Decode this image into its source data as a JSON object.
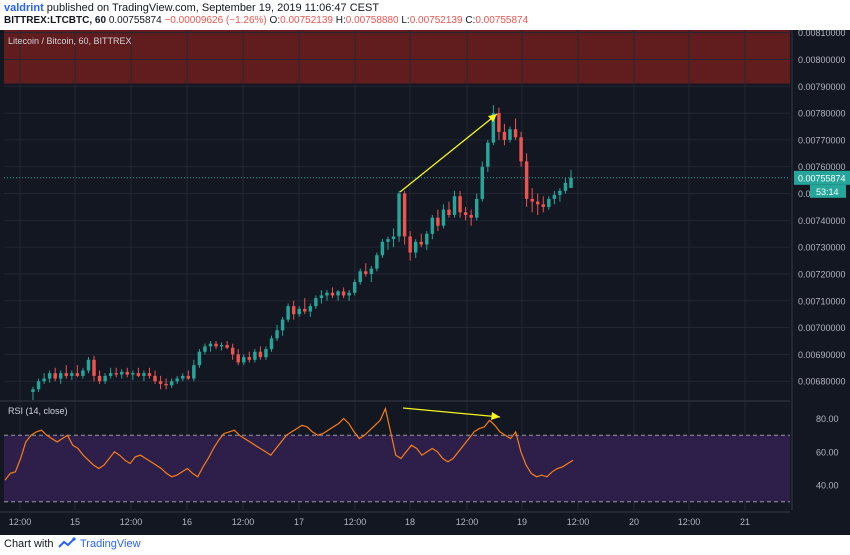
{
  "header": {
    "user": "valdrint",
    "published": " published on TradingView.com, September 19, 2019 11:06:47 CEST",
    "symbol": "BITTREX:LTCBTC, 60",
    "last_price": "0.00755874",
    "change": "−0.00009626 (−1.26%)",
    "ohlc": {
      "o_label": "O:",
      "o": "0.00752139",
      "h_label": "H:",
      "h": "0.00758880",
      "l_label": "L:",
      "l": "0.00752139",
      "c_label": "C:",
      "c": "0.00755874"
    }
  },
  "footer": {
    "chart_with": "Chart with",
    "brand": "TradingView"
  },
  "colors": {
    "background": "#131722",
    "up": "#26a69a",
    "down": "#ef5350",
    "rsi": "#f57f17",
    "annotation": "#f5f520",
    "zone": "#701d1d",
    "rsi_band": "#2d1f4a",
    "grid": "#232733"
  },
  "chart_data": [
    {
      "type": "candlestick",
      "title": "Litecoin / Bitcoin, 60, BITTREX",
      "ylim": [
        0.00673,
        0.00811
      ],
      "y_ticks": [
        "0.00810000",
        "0.00800000",
        "0.00790000",
        "0.00780000",
        "0.00770000",
        "0.00760000",
        "0.00750000",
        "0.00740000",
        "0.00730000",
        "0.00720000",
        "0.00710000",
        "0.00700000",
        "0.00690000",
        "0.00680000"
      ],
      "x_ticks": [
        "12:00",
        "15",
        "12:00",
        "16",
        "12:00",
        "17",
        "12:00",
        "18",
        "12:00",
        "19",
        "12:00",
        "20",
        "12:00",
        "21"
      ],
      "last_price_label": "0.00755874",
      "countdown_label": "53:14",
      "resistance_zone": [
        0.00791,
        0.00811
      ],
      "candles": [
        [
          0.00676,
          0.00678,
          0.00673,
          0.00677
        ],
        [
          0.00677,
          0.00681,
          0.00676,
          0.0068
        ],
        [
          0.0068,
          0.00683,
          0.00679,
          0.00681
        ],
        [
          0.00681,
          0.00684,
          0.006795,
          0.00683
        ],
        [
          0.00683,
          0.00685,
          0.0068,
          0.00681
        ],
        [
          0.00681,
          0.00684,
          0.00679,
          0.00683
        ],
        [
          0.00683,
          0.00686,
          0.00681,
          0.00682
        ],
        [
          0.00682,
          0.00684,
          0.006805,
          0.00683
        ],
        [
          0.00683,
          0.00686,
          0.006815,
          0.00682
        ],
        [
          0.00682,
          0.00685,
          0.00681,
          0.00684
        ],
        [
          0.00684,
          0.00689,
          0.00683,
          0.00688
        ],
        [
          0.00688,
          0.006895,
          0.0068,
          0.00682
        ],
        [
          0.00682,
          0.00684,
          0.00679,
          0.0068
        ],
        [
          0.0068,
          0.00683,
          0.00679,
          0.00682
        ],
        [
          0.00682,
          0.00685,
          0.00681,
          0.00683
        ],
        [
          0.00683,
          0.00685,
          0.006815,
          0.006825
        ],
        [
          0.006825,
          0.006845,
          0.00681,
          0.006835
        ],
        [
          0.006835,
          0.00685,
          0.006815,
          0.006825
        ],
        [
          0.006825,
          0.00684,
          0.006805,
          0.00683
        ],
        [
          0.00683,
          0.00685,
          0.006815,
          0.00682
        ],
        [
          0.00682,
          0.00684,
          0.0068,
          0.00683
        ],
        [
          0.00683,
          0.00685,
          0.00681,
          0.00682
        ],
        [
          0.00682,
          0.00684,
          0.00679,
          0.0068
        ],
        [
          0.0068,
          0.00682,
          0.00677,
          0.00679
        ],
        [
          0.00679,
          0.00681,
          0.00677,
          0.006785
        ],
        [
          0.006785,
          0.00681,
          0.006775,
          0.0068
        ],
        [
          0.0068,
          0.00682,
          0.00679,
          0.00681
        ],
        [
          0.00681,
          0.00683,
          0.0068,
          0.00682
        ],
        [
          0.00682,
          0.00684,
          0.006805,
          0.00681
        ],
        [
          0.00681,
          0.00688,
          0.0068,
          0.00686
        ],
        [
          0.00686,
          0.00692,
          0.00685,
          0.00691
        ],
        [
          0.00691,
          0.00694,
          0.0069,
          0.00693
        ],
        [
          0.00693,
          0.00695,
          0.00691,
          0.00694
        ],
        [
          0.00694,
          0.00695,
          0.00692,
          0.00693
        ],
        [
          0.00693,
          0.006945,
          0.006915,
          0.006935
        ],
        [
          0.006935,
          0.00695,
          0.00692,
          0.006925
        ],
        [
          0.006925,
          0.00694,
          0.00688,
          0.0069
        ],
        [
          0.0069,
          0.00692,
          0.00686,
          0.00687
        ],
        [
          0.00687,
          0.0069,
          0.00686,
          0.00689
        ],
        [
          0.00689,
          0.00691,
          0.00687,
          0.00688
        ],
        [
          0.00688,
          0.00692,
          0.00687,
          0.00691
        ],
        [
          0.00691,
          0.00693,
          0.00688,
          0.00689
        ],
        [
          0.00689,
          0.00693,
          0.00688,
          0.00692
        ],
        [
          0.00692,
          0.00697,
          0.00691,
          0.00696
        ],
        [
          0.00696,
          0.00701,
          0.00695,
          0.00699
        ],
        [
          0.00699,
          0.00704,
          0.00697,
          0.00703
        ],
        [
          0.00703,
          0.00709,
          0.00702,
          0.00708
        ],
        [
          0.00708,
          0.0071,
          0.00703,
          0.00705
        ],
        [
          0.00705,
          0.00708,
          0.00704,
          0.00707
        ],
        [
          0.00707,
          0.00711,
          0.00705,
          0.00706
        ],
        [
          0.00706,
          0.00709,
          0.00704,
          0.00708
        ],
        [
          0.00708,
          0.00712,
          0.00707,
          0.00711
        ],
        [
          0.00711,
          0.00714,
          0.00709,
          0.00712
        ],
        [
          0.00712,
          0.00714,
          0.0071,
          0.00713
        ],
        [
          0.00713,
          0.00715,
          0.00711,
          0.00712
        ],
        [
          0.00712,
          0.00714,
          0.0071,
          0.007135
        ],
        [
          0.007135,
          0.00715,
          0.00711,
          0.00712
        ],
        [
          0.00712,
          0.00714,
          0.0071,
          0.00713
        ],
        [
          0.00713,
          0.00718,
          0.00712,
          0.00717
        ],
        [
          0.00717,
          0.00722,
          0.00716,
          0.00721
        ],
        [
          0.00721,
          0.00724,
          0.00719,
          0.0072
        ],
        [
          0.0072,
          0.00723,
          0.00717,
          0.00722
        ],
        [
          0.00722,
          0.00728,
          0.00721,
          0.00727
        ],
        [
          0.00727,
          0.00733,
          0.00726,
          0.00732
        ],
        [
          0.00732,
          0.00734,
          0.00729,
          0.00733
        ],
        [
          0.00733,
          0.00737,
          0.0073,
          0.00734
        ],
        [
          0.00734,
          0.00751,
          0.00732,
          0.0075
        ],
        [
          0.0075,
          0.00751,
          0.00731,
          0.00734
        ],
        [
          0.00734,
          0.00736,
          0.00725,
          0.00728
        ],
        [
          0.00728,
          0.00733,
          0.00726,
          0.00732
        ],
        [
          0.00732,
          0.00735,
          0.0073,
          0.00731
        ],
        [
          0.00731,
          0.00736,
          0.00729,
          0.00735
        ],
        [
          0.00735,
          0.00742,
          0.00733,
          0.00741
        ],
        [
          0.00741,
          0.00744,
          0.00736,
          0.00738
        ],
        [
          0.00738,
          0.00746,
          0.00737,
          0.00744
        ],
        [
          0.00744,
          0.00747,
          0.00741,
          0.00742
        ],
        [
          0.00742,
          0.00751,
          0.00741,
          0.00749
        ],
        [
          0.00749,
          0.00751,
          0.00741,
          0.00743
        ],
        [
          0.00743,
          0.00745,
          0.0074,
          0.00742
        ],
        [
          0.00742,
          0.00744,
          0.00738,
          0.00741
        ],
        [
          0.00741,
          0.0075,
          0.0074,
          0.00748
        ],
        [
          0.00748,
          0.00762,
          0.00747,
          0.0076
        ],
        [
          0.0076,
          0.0077,
          0.00758,
          0.00769
        ],
        [
          0.00769,
          0.00783,
          0.00768,
          0.0078
        ],
        [
          0.0078,
          0.00782,
          0.0077,
          0.00773
        ],
        [
          0.00773,
          0.00776,
          0.00768,
          0.0077
        ],
        [
          0.0077,
          0.00775,
          0.00769,
          0.00774
        ],
        [
          0.00774,
          0.00778,
          0.0077,
          0.00771
        ],
        [
          0.00771,
          0.00773,
          0.0076,
          0.00762
        ],
        [
          0.00762,
          0.00765,
          0.00745,
          0.00748
        ],
        [
          0.00748,
          0.00752,
          0.00743,
          0.00747
        ],
        [
          0.00747,
          0.0075,
          0.00742,
          0.00746
        ],
        [
          0.00746,
          0.00749,
          0.00743,
          0.00745
        ],
        [
          0.00745,
          0.00749,
          0.00744,
          0.00748
        ],
        [
          0.00748,
          0.00751,
          0.00746,
          0.007495
        ],
        [
          0.007495,
          0.00752,
          0.00747,
          0.00751
        ],
        [
          0.00751,
          0.00756,
          0.0075,
          0.00754
        ],
        [
          0.007521,
          0.007589,
          0.007521,
          0.007559
        ]
      ]
    },
    {
      "type": "line",
      "title": "RSI (14, close)",
      "ylim": [
        25,
        90
      ],
      "y_ticks": [
        "80.00",
        "60.00",
        "40.00"
      ],
      "bands": [
        70,
        30
      ],
      "values": [
        43,
        47,
        48,
        56,
        66,
        70,
        72,
        73,
        70,
        68,
        66,
        68,
        70,
        64,
        62,
        58,
        55,
        52,
        50,
        52,
        56,
        60,
        58,
        55,
        53,
        57,
        58,
        56,
        54,
        52,
        50,
        47,
        45,
        46,
        48,
        50,
        47,
        45,
        51,
        56,
        62,
        67,
        71,
        72,
        73,
        70,
        68,
        66,
        64,
        62,
        60,
        58,
        62,
        66,
        70,
        72,
        74,
        76,
        75,
        72,
        70,
        71,
        73,
        75,
        77,
        80,
        77,
        72,
        68,
        70,
        73,
        76,
        79,
        86,
        72,
        58,
        56,
        60,
        64,
        62,
        58,
        60,
        62,
        60,
        56,
        54,
        56,
        60,
        64,
        68,
        72,
        74,
        75,
        79,
        76,
        72,
        70,
        68,
        72,
        60,
        52,
        47,
        45,
        46,
        45,
        48,
        50,
        51,
        53,
        55
      ]
    }
  ]
}
